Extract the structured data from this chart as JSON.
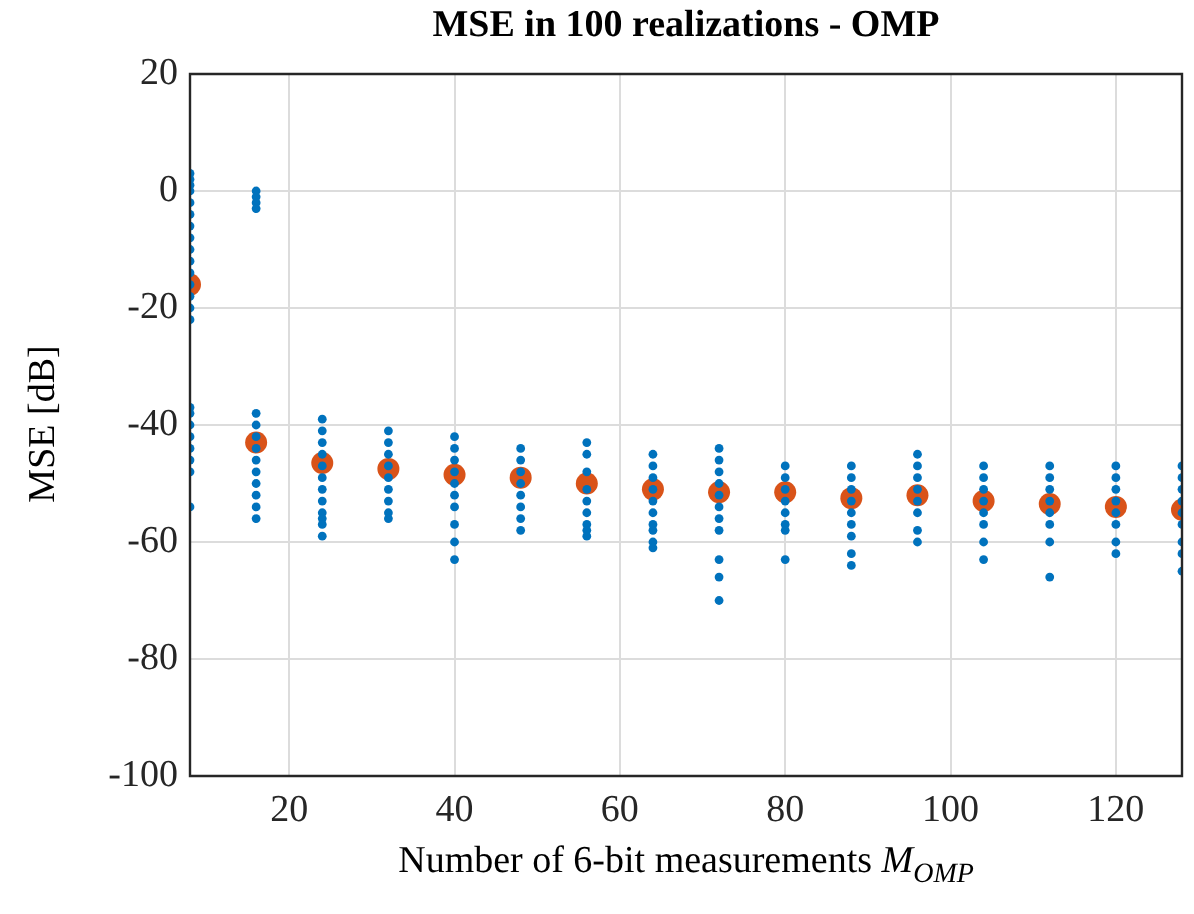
{
  "chart_data": {
    "type": "scatter",
    "title": "MSE in 100 realizations - OMP",
    "xlabel": "Number of 6-bit measurements M$_{OMP}$",
    "ylabel": "MSE [dB]",
    "xlim": [
      8,
      128
    ],
    "xticks": [
      20,
      40,
      60,
      80,
      100,
      120
    ],
    "ylim": [
      -100,
      20
    ],
    "yticks": [
      -100,
      -80,
      -60,
      -40,
      -20,
      0,
      20
    ],
    "grid": true,
    "legend": false,
    "marker": "circle",
    "series": [
      {
        "color": "#0072bd",
        "x": [
          8,
          8,
          8,
          8,
          8,
          8,
          8,
          8,
          8,
          8,
          8,
          8,
          8,
          8,
          8,
          8,
          8,
          8,
          8,
          8,
          8,
          8,
          8,
          16,
          16,
          16,
          16,
          16,
          16,
          16,
          16,
          16,
          16,
          16,
          16,
          16,
          16,
          24,
          24,
          24,
          24,
          24,
          24,
          24,
          24,
          24,
          24,
          24,
          24,
          32,
          32,
          32,
          32,
          32,
          32,
          32,
          32,
          32,
          40,
          40,
          40,
          40,
          40,
          40,
          40,
          40,
          40,
          40,
          48,
          48,
          48,
          48,
          48,
          48,
          48,
          48,
          56,
          56,
          56,
          56,
          56,
          56,
          56,
          56,
          56,
          64,
          64,
          64,
          64,
          64,
          64,
          64,
          64,
          64,
          64,
          72,
          72,
          72,
          72,
          72,
          72,
          72,
          72,
          72,
          72,
          72,
          80,
          80,
          80,
          80,
          80,
          80,
          80,
          80,
          88,
          88,
          88,
          88,
          88,
          88,
          88,
          88,
          88,
          96,
          96,
          96,
          96,
          96,
          96,
          96,
          96,
          104,
          104,
          104,
          104,
          104,
          104,
          104,
          104,
          112,
          112,
          112,
          112,
          112,
          112,
          112,
          112,
          120,
          120,
          120,
          120,
          120,
          120,
          120,
          120,
          128,
          128,
          128,
          128,
          128,
          128,
          128,
          128,
          128
        ],
        "values": [
          3,
          2,
          1,
          0,
          -2,
          -4,
          -6,
          -8,
          -10,
          -12,
          -14,
          -16,
          -18,
          -20,
          -22,
          -37,
          -38,
          -40,
          -42,
          -44,
          -46,
          -48,
          -54,
          0,
          -1,
          -2,
          -3,
          -38,
          -40,
          -42,
          -44,
          -46,
          -48,
          -50,
          -52,
          -54,
          -56,
          -39,
          -41,
          -43,
          -45,
          -47,
          -49,
          -51,
          -53,
          -55,
          -56,
          -57,
          -59,
          -41,
          -43,
          -45,
          -47,
          -49,
          -51,
          -53,
          -55,
          -56,
          -42,
          -44,
          -46,
          -48,
          -50,
          -52,
          -54,
          -57,
          -60,
          -63,
          -44,
          -46,
          -48,
          -50,
          -52,
          -54,
          -56,
          -58,
          -43,
          -45,
          -48,
          -51,
          -53,
          -55,
          -57,
          -58,
          -59,
          -45,
          -47,
          -49,
          -51,
          -53,
          -55,
          -57,
          -58,
          -60,
          -61,
          -44,
          -46,
          -48,
          -50,
          -52,
          -54,
          -56,
          -58,
          -63,
          -66,
          -70,
          -47,
          -49,
          -51,
          -53,
          -55,
          -57,
          -58,
          -63,
          -47,
          -49,
          -51,
          -53,
          -55,
          -57,
          -59,
          -62,
          -64,
          -45,
          -47,
          -49,
          -51,
          -53,
          -55,
          -58,
          -60,
          -47,
          -49,
          -51,
          -53,
          -55,
          -57,
          -60,
          -63,
          -47,
          -49,
          -51,
          -53,
          -55,
          -57,
          -60,
          -66,
          -47,
          -49,
          -51,
          -53,
          -55,
          -57,
          -60,
          -62,
          -47,
          -49,
          -51,
          -53,
          -55,
          -57,
          -60,
          -62,
          -65
        ]
      },
      {
        "color": "#d95319",
        "x": [
          8,
          16,
          24,
          32,
          40,
          48,
          56,
          64,
          72,
          80,
          88,
          96,
          104,
          112,
          120,
          128
        ],
        "values": [
          -16,
          -43,
          -46.5,
          -47.5,
          -48.5,
          -49,
          -50,
          -51,
          -51.5,
          -51.5,
          -52.5,
          -52,
          -53,
          -53.5,
          -54,
          -54.5
        ]
      }
    ]
  }
}
